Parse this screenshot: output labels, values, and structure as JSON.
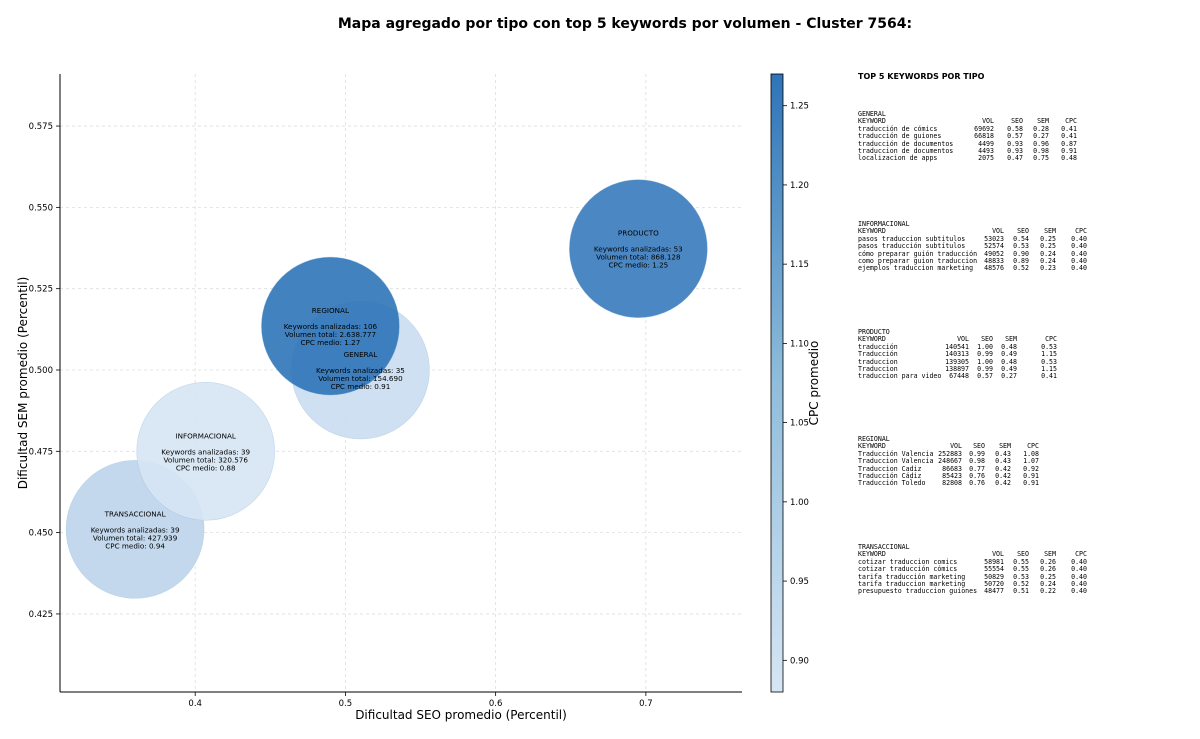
{
  "title": "Mapa agregado por tipo con top 5 keywords por volumen - Cluster 7564:",
  "chart_data": {
    "type": "scatter",
    "title": "Mapa agregado por tipo con top 5 keywords por volumen - Cluster 7564:",
    "xlabel": "Dificultad SEO promedio (Percentil)",
    "ylabel": "Dificultad SEM promedio (Percentil)",
    "colorbar_label": "CPC promedio",
    "xlim": [
      0.31,
      0.764
    ],
    "ylim": [
      0.401,
      0.591
    ],
    "xticks": [
      0.4,
      0.5,
      0.6,
      0.7
    ],
    "xtick_labels": [
      "0.4",
      "0.5",
      "0.6",
      "0.7"
    ],
    "yticks": [
      0.425,
      0.45,
      0.475,
      0.5,
      0.525,
      0.55,
      0.575
    ],
    "ytick_labels": [
      "0.425",
      "0.450",
      "0.475",
      "0.500",
      "0.525",
      "0.550",
      "0.575"
    ],
    "colorbar_range": [
      0.88,
      1.27
    ],
    "colorbar_ticks": [
      0.9,
      0.95,
      1.0,
      1.05,
      1.1,
      1.15,
      1.2,
      1.25
    ],
    "colorbar_tick_labels": [
      "0.90",
      "0.95",
      "1.00",
      "1.05",
      "1.10",
      "1.15",
      "1.20",
      "1.25"
    ],
    "grid": true,
    "colors": {
      "low": "#d6e6f4",
      "high": "#2e74b8"
    },
    "points": [
      {
        "name": "TRANSACCIONAL",
        "x": 0.36,
        "y": 0.451,
        "cpc": 0.94,
        "keywords": 39,
        "volume": "427.939",
        "label": [
          "TRANSACCIONAL",
          "",
          "Keywords analizadas: 39",
          "Volumen total: 427.939",
          "CPC medio: 0.94"
        ]
      },
      {
        "name": "INFORMACIONAL",
        "x": 0.407,
        "y": 0.475,
        "cpc": 0.88,
        "keywords": 39,
        "volume": "320.576",
        "label": [
          "INFORMACIONAL",
          "",
          "Keywords analizadas: 39",
          "Volumen total: 320.576",
          "CPC medio: 0.88"
        ]
      },
      {
        "name": "GENERAL",
        "x": 0.51,
        "y": 0.5,
        "cpc": 0.91,
        "keywords": 35,
        "volume": "154.690",
        "label": [
          "GENERAL",
          "",
          "Keywords analizadas: 35",
          "Volumen total: 154.690",
          "CPC medio: 0.91"
        ]
      },
      {
        "name": "REGIONAL",
        "x": 0.49,
        "y": 0.5135,
        "cpc": 1.27,
        "keywords": 106,
        "volume": "2.638.777",
        "label": [
          "REGIONAL",
          "",
          "Keywords analizadas: 106",
          "Volumen total: 2.638.777",
          "CPC medio: 1.27"
        ]
      },
      {
        "name": "PRODUCTO",
        "x": 0.695,
        "y": 0.5373,
        "cpc": 1.25,
        "keywords": 53,
        "volume": "868.128",
        "label": [
          "PRODUCTO",
          "",
          "Keywords analizadas: 53",
          "Volumen total: 868.128",
          "CPC medio: 1.25"
        ]
      }
    ]
  },
  "top_keywords": {
    "title": "TOP 5 KEYWORDS POR TIPO",
    "groups": [
      {
        "type": "GENERAL",
        "header": [
          "KEYWORD",
          "VOL",
          "SEO",
          "SEM",
          "CPC"
        ],
        "rows": [
          [
            "traducción de cómics",
            "69692",
            "0.58",
            "0.28",
            "0.41"
          ],
          [
            "traducción de guiones",
            "66818",
            "0.57",
            "0.27",
            "0.41"
          ],
          [
            "traducción de documentos",
            "4499",
            "0.93",
            "0.96",
            "0.87"
          ],
          [
            "traduccion de documentos",
            "4493",
            "0.93",
            "0.98",
            "0.91"
          ],
          [
            "localizacion de apps",
            "2075",
            "0.47",
            "0.75",
            "0.48"
          ]
        ]
      },
      {
        "type": "INFORMACIONAL",
        "header": [
          "KEYWORD",
          "VOL",
          "SEO",
          "SEM",
          "CPC"
        ],
        "rows": [
          [
            "pasos traduccion subtitulos",
            "53023",
            "0.54",
            "0.25",
            "0.40"
          ],
          [
            "pasos traducción subtítulos",
            "52574",
            "0.53",
            "0.25",
            "0.40"
          ],
          [
            "cómo preparar guión traducción",
            "49052",
            "0.90",
            "0.24",
            "0.40"
          ],
          [
            "como preparar guion traduccion",
            "48833",
            "0.89",
            "0.24",
            "0.40"
          ],
          [
            "ejemplos traduccion marketing",
            "48576",
            "0.52",
            "0.23",
            "0.40"
          ]
        ]
      },
      {
        "type": "PRODUCTO",
        "header": [
          "KEYWORD",
          "VOL",
          "SEO",
          "SEM",
          "CPC"
        ],
        "rows": [
          [
            "traducción",
            "140541",
            "1.00",
            "0.48",
            "0.53"
          ],
          [
            "Traducción",
            "140313",
            "0.99",
            "0.49",
            "1.15"
          ],
          [
            "traduccion",
            "139305",
            "1.00",
            "0.48",
            "0.53"
          ],
          [
            "Traduccion",
            "138897",
            "0.99",
            "0.49",
            "1.15"
          ],
          [
            "traduccion para video",
            "67448",
            "0.57",
            "0.27",
            "0.41"
          ]
        ]
      },
      {
        "type": "REGIONAL",
        "header": [
          "KEYWORD",
          "VOL",
          "SEO",
          "SEM",
          "CPC"
        ],
        "rows": [
          [
            "Traducción Valencia",
            "252883",
            "0.99",
            "0.43",
            "1.08"
          ],
          [
            "Traduccion Valencia",
            "248667",
            "0.98",
            "0.43",
            "1.07"
          ],
          [
            "Traduccion Cadiz",
            "86683",
            "0.77",
            "0.42",
            "0.92"
          ],
          [
            "Traducción Cádiz",
            "85423",
            "0.76",
            "0.42",
            "0.91"
          ],
          [
            "Traducción Toledo",
            "82808",
            "0.76",
            "0.42",
            "0.91"
          ]
        ]
      },
      {
        "type": "TRANSACCIONAL",
        "header": [
          "KEYWORD",
          "VOL",
          "SEO",
          "SEM",
          "CPC"
        ],
        "rows": [
          [
            "cotizar traduccion comics",
            "58981",
            "0.55",
            "0.26",
            "0.40"
          ],
          [
            "cotizar traducción cómics",
            "55554",
            "0.55",
            "0.26",
            "0.40"
          ],
          [
            "tarifa traducción marketing",
            "50829",
            "0.53",
            "0.25",
            "0.40"
          ],
          [
            "tarifa traduccion marketing",
            "50720",
            "0.52",
            "0.24",
            "0.40"
          ],
          [
            "presupuesto traduccion guiones",
            "48477",
            "0.51",
            "0.22",
            "0.40"
          ]
        ]
      }
    ]
  }
}
